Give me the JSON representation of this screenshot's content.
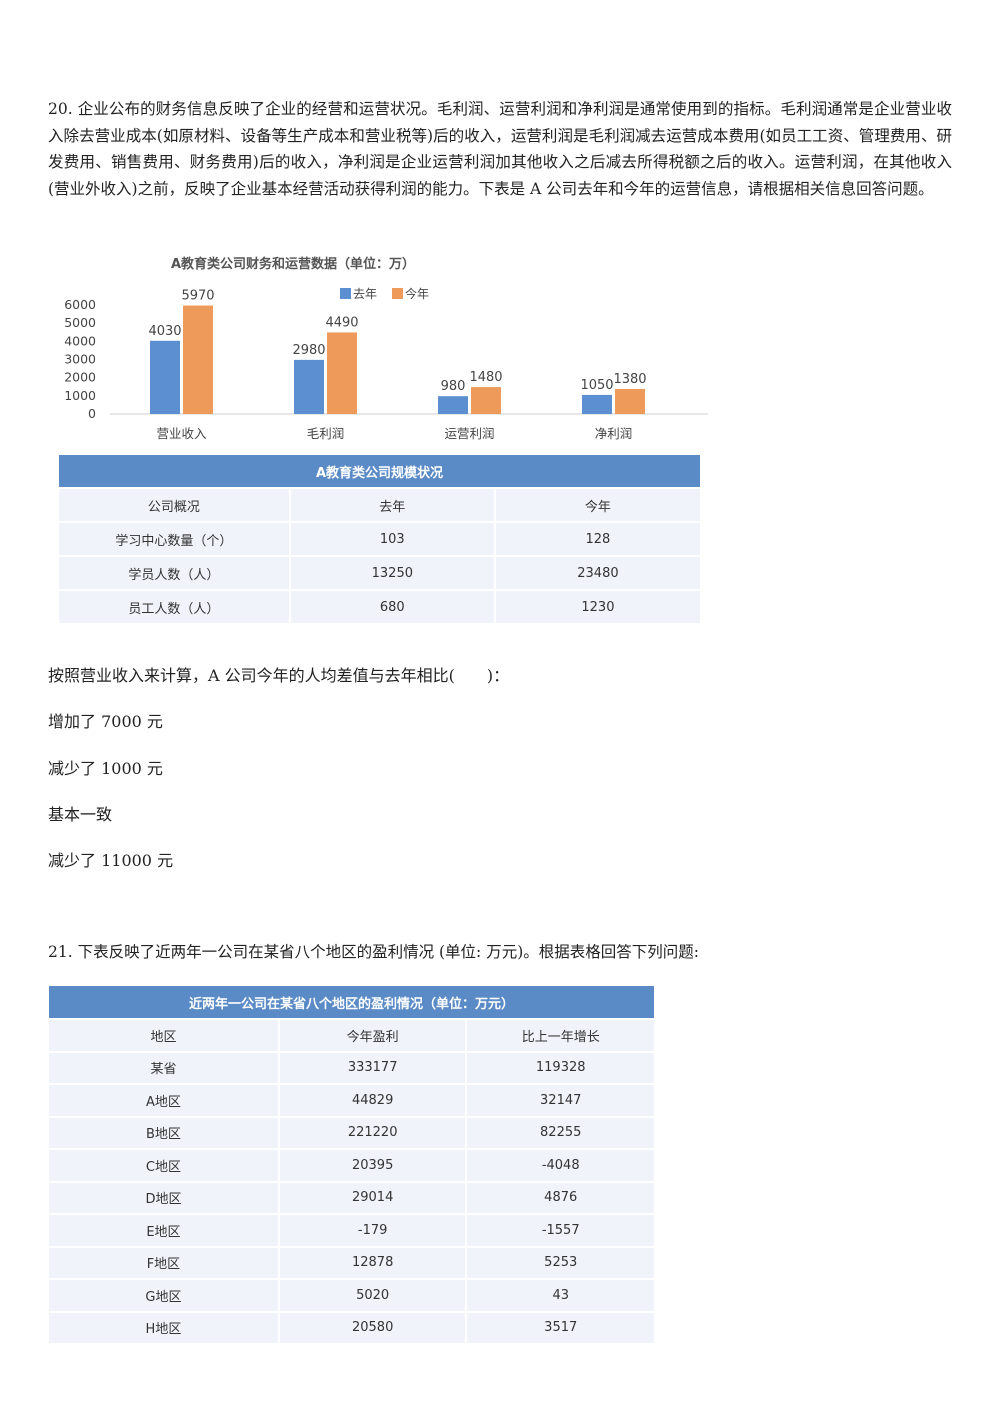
{
  "q20": {
    "text": "20. 企业公布的财务信息反映了企业的经营和运营状况。毛利润、运营利润和净利润是通常使用到的指标。毛利润通常是企业营业收入除去营业成本(如原材料、设备等生产成本和营业税等)后的收入，运营利润是毛利润减去运营成本费用(如员工工资、管理费用、研发费用、销售费用、财务费用)后的收入，净利润是企业运营利润加其他收入之后减去所得税额之后的收入。运营利润，在其他收入(营业外收入)之前，反映了企业基本经营活动获得利润的能力。下表是 A 公司去年和今年的运营信息，请根据相关信息回答问题。",
    "question": "按照营业收入来计算，A 公司今年的人均差值与去年相比(　　)：",
    "options": [
      "增加了 7000 元",
      "减少了 1000 元",
      "基本一致",
      "减少了 11000 元"
    ]
  },
  "chart_data": {
    "type": "bar",
    "title": "A教育类公司财务和运营数据（单位：万）",
    "categories": [
      "营业收入",
      "毛利润",
      "运营利润",
      "净利润"
    ],
    "series": [
      {
        "name": "去年",
        "values": [
          4030,
          2980,
          980,
          1050
        ],
        "color": "#5b8fd1"
      },
      {
        "name": "今年",
        "values": [
          5970,
          4490,
          1480,
          1380
        ],
        "color": "#ee9a5a"
      }
    ],
    "yticks": [
      "6000",
      "5000",
      "4000",
      "3000",
      "2000",
      "1000",
      "0"
    ],
    "ylim": [
      0,
      6000
    ],
    "legend": "top"
  },
  "table1": {
    "caption": "A教育类公司规模状况",
    "header": [
      "公司概况",
      "去年",
      "今年"
    ],
    "rows": [
      [
        "学习中心数量（个）",
        "103",
        "128"
      ],
      [
        "学员人数（人）",
        "13250",
        "23480"
      ],
      [
        "员工人数（人）",
        "680",
        "1230"
      ]
    ]
  },
  "q21": {
    "text": "21. 下表反映了近两年一公司在某省八个地区的盈利情况 (单位: 万元)。根据表格回答下列问题:"
  },
  "table2": {
    "caption": "近两年一公司在某省八个地区的盈利情况（单位：万元）",
    "header": [
      "地区",
      "今年盈利",
      "比上一年增长"
    ],
    "rows": [
      [
        "某省",
        "333177",
        "119328"
      ],
      [
        "A地区",
        "44829",
        "32147"
      ],
      [
        "B地区",
        "221220",
        "82255"
      ],
      [
        "C地区",
        "20395",
        "-4048"
      ],
      [
        "D地区",
        "29014",
        "4876"
      ],
      [
        "E地区",
        "-179",
        "-1557"
      ],
      [
        "F地区",
        "12878",
        "5253"
      ],
      [
        "G地区",
        "5020",
        "43"
      ],
      [
        "H地区",
        "20580",
        "3517"
      ]
    ]
  }
}
